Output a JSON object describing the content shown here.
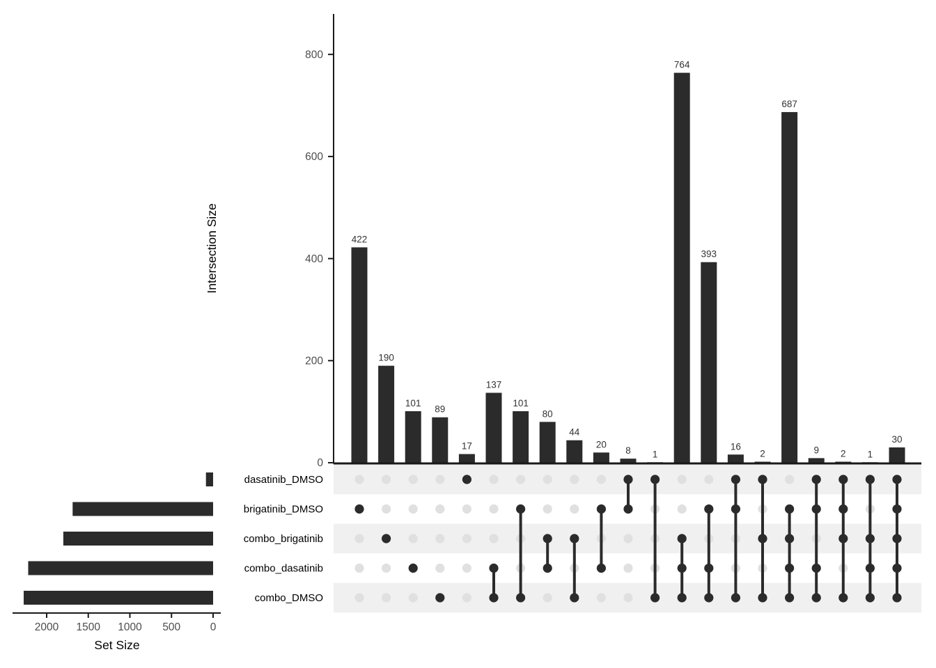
{
  "chart_data": {
    "type": "upset",
    "description": "UpSet plot of differentially expressed gene set intersections",
    "intersection_axis": {
      "label": "Intersection Size",
      "ticks": [
        0,
        200,
        400,
        600,
        800
      ],
      "ylim": [
        0,
        880
      ]
    },
    "set_axis": {
      "label": "Set Size",
      "ticks": [
        2000,
        1500,
        1000,
        500,
        0
      ],
      "xlim": [
        2420,
        0
      ]
    },
    "sets": [
      {
        "name": "dasatinib_DMSO",
        "size": 86
      },
      {
        "name": "brigatinib_DMSO",
        "size": 1688
      },
      {
        "name": "combo_brigatinib",
        "size": 1800
      },
      {
        "name": "combo_dasatinib",
        "size": 2222
      },
      {
        "name": "combo_DMSO",
        "size": 2276
      }
    ],
    "intersections": [
      {
        "value": 422,
        "members": [
          "brigatinib_DMSO"
        ]
      },
      {
        "value": 190,
        "members": [
          "combo_brigatinib"
        ]
      },
      {
        "value": 101,
        "members": [
          "combo_dasatinib"
        ]
      },
      {
        "value": 89,
        "members": [
          "combo_DMSO"
        ]
      },
      {
        "value": 17,
        "members": [
          "dasatinib_DMSO"
        ]
      },
      {
        "value": 137,
        "members": [
          "combo_dasatinib",
          "combo_DMSO"
        ]
      },
      {
        "value": 101,
        "members": [
          "brigatinib_DMSO",
          "combo_DMSO"
        ]
      },
      {
        "value": 80,
        "members": [
          "combo_brigatinib",
          "combo_dasatinib"
        ]
      },
      {
        "value": 44,
        "members": [
          "combo_brigatinib",
          "combo_DMSO"
        ]
      },
      {
        "value": 20,
        "members": [
          "brigatinib_DMSO",
          "combo_dasatinib"
        ]
      },
      {
        "value": 8,
        "members": [
          "dasatinib_DMSO",
          "brigatinib_DMSO"
        ]
      },
      {
        "value": 1,
        "members": [
          "dasatinib_DMSO",
          "combo_DMSO"
        ]
      },
      {
        "value": 764,
        "members": [
          "combo_brigatinib",
          "combo_dasatinib",
          "combo_DMSO"
        ]
      },
      {
        "value": 393,
        "members": [
          "brigatinib_DMSO",
          "combo_dasatinib",
          "combo_DMSO"
        ]
      },
      {
        "value": 16,
        "members": [
          "dasatinib_DMSO",
          "brigatinib_DMSO",
          "combo_DMSO"
        ]
      },
      {
        "value": 2,
        "members": [
          "dasatinib_DMSO",
          "combo_brigatinib",
          "combo_DMSO"
        ]
      },
      {
        "value": 687,
        "members": [
          "brigatinib_DMSO",
          "combo_brigatinib",
          "combo_dasatinib",
          "combo_DMSO"
        ]
      },
      {
        "value": 9,
        "members": [
          "dasatinib_DMSO",
          "brigatinib_DMSO",
          "combo_dasatinib",
          "combo_DMSO"
        ]
      },
      {
        "value": 2,
        "members": [
          "dasatinib_DMSO",
          "brigatinib_DMSO",
          "combo_brigatinib",
          "combo_DMSO"
        ]
      },
      {
        "value": 1,
        "members": [
          "dasatinib_DMSO",
          "combo_brigatinib",
          "combo_dasatinib",
          "combo_DMSO"
        ]
      },
      {
        "value": 30,
        "members": [
          "dasatinib_DMSO",
          "brigatinib_DMSO",
          "combo_brigatinib",
          "combo_dasatinib",
          "combo_DMSO"
        ]
      }
    ],
    "legend_position": "none",
    "grid": false,
    "colors": {
      "bar": "#2b2b2b",
      "active_dot": "#2b2b2b",
      "connector": "#2b2b2b",
      "inactive_dot": "#e0e0e0",
      "stripe": "#f0f0f0",
      "axis_line": "#1a1a1a",
      "tick_text": "#4d4d4d",
      "value_text": "#333333",
      "label_text": "#000000",
      "background": "#ffffff"
    }
  }
}
